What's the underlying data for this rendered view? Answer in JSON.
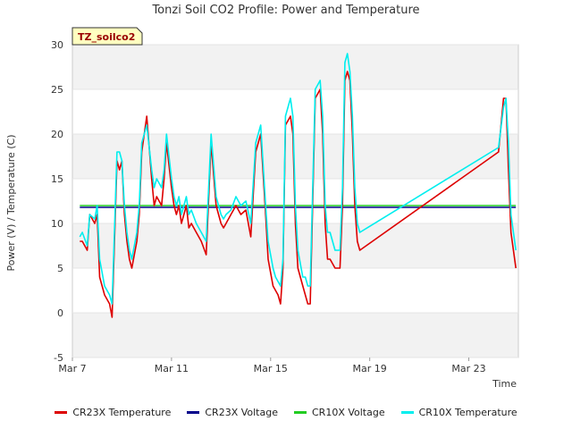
{
  "chart_data": {
    "type": "line",
    "title": "Tonzi Soil CO2 Profile: Power and Temperature",
    "xlabel": "Time",
    "ylabel": "Power (V) / Temperature (C)",
    "site_label": "TZ_soilco2",
    "xlim": [
      7,
      25
    ],
    "ylim": [
      -5,
      30
    ],
    "yticks": [
      -5,
      0,
      5,
      10,
      15,
      20,
      25,
      30
    ],
    "xticks": [
      {
        "value": 7,
        "label": "Mar 7"
      },
      {
        "value": 11,
        "label": "Mar 11"
      },
      {
        "value": 15,
        "label": "Mar 15"
      },
      {
        "value": 19,
        "label": "Mar 19"
      },
      {
        "value": 23,
        "label": "Mar 23"
      }
    ],
    "grid": "horizontal bands",
    "legend_position": "bottom",
    "series": [
      {
        "name": "CR23X Temperature",
        "color": "#dd0000",
        "x": [
          7.3,
          7.4,
          7.6,
          7.7,
          7.9,
          8.0,
          8.1,
          8.3,
          8.5,
          8.6,
          8.8,
          8.9,
          9.0,
          9.1,
          9.2,
          9.3,
          9.4,
          9.6,
          9.7,
          9.8,
          10.0,
          10.2,
          10.3,
          10.4,
          10.6,
          10.7,
          10.8,
          11.0,
          11.1,
          11.2,
          11.3,
          11.4,
          11.6,
          11.7,
          11.8,
          12.0,
          12.1,
          12.2,
          12.4,
          12.6,
          12.8,
          13.0,
          13.1,
          13.2,
          13.4,
          13.6,
          13.8,
          14.0,
          14.2,
          14.4,
          14.6,
          14.8,
          14.9,
          15.1,
          15.2,
          15.3,
          15.4,
          15.5,
          15.6,
          15.8,
          15.9,
          16.0,
          16.1,
          16.3,
          16.4,
          16.5,
          16.6,
          16.8,
          17.0,
          17.1,
          17.2,
          17.3,
          17.4,
          17.6,
          17.8,
          17.9,
          18.0,
          18.1,
          18.2,
          18.3,
          18.4,
          18.5,
          18.6,
          24.2,
          24.4,
          24.5,
          24.6,
          24.7,
          24.9
        ],
        "y": [
          8,
          8,
          7,
          11,
          10,
          11,
          4,
          2,
          1,
          -0.5,
          17,
          16,
          17,
          11,
          8,
          6,
          5,
          8,
          11,
          18,
          22,
          15,
          12,
          13,
          12,
          15,
          19,
          14,
          12,
          11,
          12,
          10,
          12,
          9.5,
          10,
          9,
          8.5,
          8,
          6.5,
          19,
          12,
          10,
          9.5,
          10,
          11,
          12,
          11,
          11.5,
          8.5,
          18,
          20,
          11,
          6,
          3,
          2.5,
          2,
          1,
          5,
          21,
          22,
          20,
          10,
          5,
          3,
          2,
          1,
          1,
          24,
          25,
          20,
          10,
          6,
          6,
          5,
          5,
          12,
          26,
          27,
          26,
          20,
          12,
          8,
          7,
          18,
          24,
          24,
          16,
          9,
          5
        ]
      },
      {
        "name": "CR23X Voltage",
        "color": "#00008b",
        "x": [
          7.3,
          24.9
        ],
        "y": [
          11.8,
          11.8
        ]
      },
      {
        "name": "CR10X Voltage",
        "color": "#22cc22",
        "x": [
          7.3,
          24.9
        ],
        "y": [
          12.0,
          12.0
        ]
      },
      {
        "name": "CR10X Temperature",
        "color": "#00eeee",
        "x": [
          7.3,
          7.4,
          7.6,
          7.7,
          7.9,
          8.0,
          8.1,
          8.3,
          8.5,
          8.6,
          8.8,
          8.9,
          9.0,
          9.1,
          9.2,
          9.3,
          9.4,
          9.6,
          9.7,
          9.8,
          10.0,
          10.2,
          10.3,
          10.4,
          10.6,
          10.7,
          10.8,
          11.0,
          11.1,
          11.2,
          11.3,
          11.4,
          11.6,
          11.7,
          11.8,
          12.0,
          12.1,
          12.2,
          12.4,
          12.6,
          12.8,
          13.0,
          13.1,
          13.2,
          13.4,
          13.6,
          13.8,
          14.0,
          14.2,
          14.4,
          14.6,
          14.8,
          14.9,
          15.1,
          15.2,
          15.3,
          15.4,
          15.5,
          15.6,
          15.8,
          15.9,
          16.0,
          16.1,
          16.3,
          16.4,
          16.5,
          16.6,
          16.8,
          17.0,
          17.1,
          17.2,
          17.3,
          17.4,
          17.6,
          17.8,
          17.9,
          18.0,
          18.1,
          18.2,
          18.3,
          18.4,
          18.5,
          18.6,
          24.2,
          24.4,
          24.5,
          24.6,
          24.7,
          24.9
        ],
        "y": [
          8.5,
          9,
          7.5,
          11,
          10.5,
          12,
          6,
          3,
          2,
          1,
          18,
          18,
          17,
          12,
          9,
          7,
          6,
          9,
          12,
          19,
          21,
          16,
          14,
          15,
          14,
          16,
          20,
          15,
          13,
          12,
          13,
          11,
          13,
          11,
          11.5,
          10,
          9.5,
          9,
          8,
          20,
          13,
          11,
          10.5,
          11,
          11.5,
          13,
          12,
          12.5,
          10,
          19,
          21,
          12,
          8,
          5,
          4,
          3.5,
          3,
          6,
          22,
          24,
          22,
          12,
          7,
          4,
          4,
          3,
          3,
          25,
          26,
          22,
          12,
          9,
          9,
          7,
          7,
          14,
          28,
          29,
          27,
          22,
          14,
          10,
          9,
          18.5,
          23,
          24,
          19,
          11,
          7
        ]
      }
    ]
  }
}
